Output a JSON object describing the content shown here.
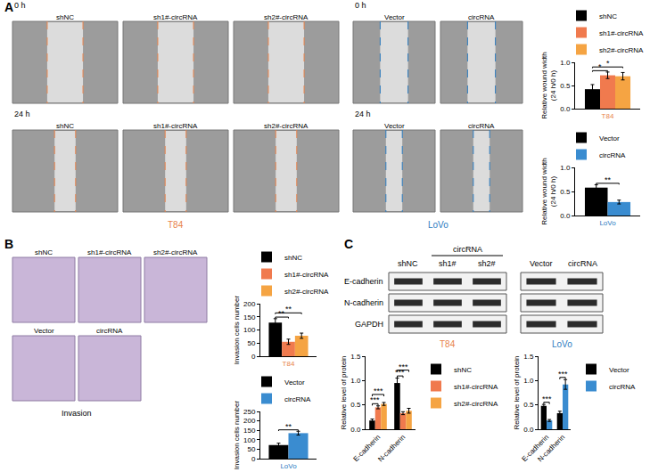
{
  "panels": [
    {
      "label": "A",
      "time_labels": [
        "0 h",
        "24 h"
      ],
      "image_groups": [
        {
          "cell_line": "T84",
          "color": "#E8824A",
          "conditions": [
            "shNC",
            "sh1#-circRNA",
            "sh2#-circRNA"
          ]
        },
        {
          "cell_line": "LoVo",
          "color": "#2B7BBF",
          "conditions": [
            "Vector",
            "circRNA"
          ]
        }
      ]
    },
    {
      "label": "B",
      "caption": "Invasion",
      "image_groups": [
        {
          "conditions": [
            "shNC",
            "sh1#-circRNA",
            "sh2#-circRNA"
          ]
        },
        {
          "conditions": [
            "Vector",
            "circRNA"
          ]
        }
      ]
    },
    {
      "label": "C",
      "blot": {
        "rows": [
          "E-cadherin",
          "N-cadherin",
          "GAPDH"
        ],
        "groups": [
          {
            "cell_line": "T84",
            "color": "#E8824A",
            "header": {
              "text": "circRNA",
              "lanes": [
                1,
                2
              ]
            },
            "lanes": [
              "shNC",
              "sh1#",
              "sh2#"
            ]
          },
          {
            "cell_line": "LoVo",
            "color": "#2B7BBF",
            "lanes": [
              "Vector",
              "circRNA"
            ]
          }
        ]
      }
    }
  ],
  "chart_data": [
    {
      "type": "bar",
      "ylabel": "Relative wound width\n(24 h/0 h)",
      "categories": [
        "T84"
      ],
      "ylim": [
        0,
        1
      ],
      "yticks": [
        {
          "value": 0,
          "label": "0.0"
        },
        {
          "value": 0.5,
          "label": "0.5"
        },
        {
          "value": 1,
          "label": "1.0"
        }
      ],
      "legend": "top",
      "series": [
        {
          "name": "shNC",
          "color": "#000000",
          "values": [
            0.42
          ],
          "errors": [
            0.1
          ]
        },
        {
          "name": "sh1#-circRNA",
          "color": "#F07A4E",
          "values": [
            0.72
          ],
          "errors": [
            0.07
          ]
        },
        {
          "name": "sh2#-circRNA",
          "color": "#F5A443",
          "values": [
            0.7
          ],
          "errors": [
            0.08
          ]
        }
      ],
      "annotations": [
        {
          "text": "*",
          "group": 0,
          "between": [
            0,
            1
          ]
        },
        {
          "text": "*",
          "group": 0,
          "between": [
            0,
            2
          ]
        }
      ]
    },
    {
      "type": "bar",
      "ylabel": "Relative wound width\n(24 h/0 h)",
      "categories": [
        "LoVo"
      ],
      "ylim": [
        0,
        1
      ],
      "yticks": [
        {
          "value": 0,
          "label": "0.0"
        },
        {
          "value": 0.5,
          "label": "0.5"
        },
        {
          "value": 1,
          "label": "1.0"
        }
      ],
      "legend": "top",
      "series": [
        {
          "name": "Vector",
          "color": "#000000",
          "values": [
            0.58
          ],
          "errors": [
            0.06
          ]
        },
        {
          "name": "circRNA",
          "color": "#3A8CD0",
          "values": [
            0.28
          ],
          "errors": [
            0.04
          ]
        }
      ],
      "annotations": [
        {
          "text": "**",
          "group": 0,
          "between": [
            0,
            1
          ]
        }
      ]
    },
    {
      "type": "bar",
      "ylabel": "Invasion cells number",
      "categories": [
        "T84"
      ],
      "ylim": [
        0,
        200
      ],
      "yticks": [
        0,
        50,
        100,
        150,
        200
      ],
      "legend": "top",
      "series": [
        {
          "name": "shNC",
          "color": "#000000",
          "values": [
            128
          ],
          "errors": [
            15
          ]
        },
        {
          "name": "sh1#-circRNA",
          "color": "#F07A4E",
          "values": [
            55
          ],
          "errors": [
            10
          ]
        },
        {
          "name": "sh2#-circRNA",
          "color": "#F5A443",
          "values": [
            78
          ],
          "errors": [
            10
          ]
        }
      ],
      "annotations": [
        {
          "text": "**",
          "group": 0,
          "between": [
            0,
            1
          ]
        },
        {
          "text": "**",
          "group": 0,
          "between": [
            0,
            2
          ]
        }
      ]
    },
    {
      "type": "bar",
      "ylabel": "Invasion cells number",
      "categories": [
        "LoVo"
      ],
      "ylim": [
        0,
        250
      ],
      "yticks": [
        0,
        50,
        100,
        150,
        200,
        250
      ],
      "legend": "top",
      "series": [
        {
          "name": "Vector",
          "color": "#000000",
          "values": [
            72
          ],
          "errors": [
            10
          ]
        },
        {
          "name": "circRNA",
          "color": "#3A8CD0",
          "values": [
            135
          ],
          "errors": [
            10
          ]
        }
      ],
      "annotations": [
        {
          "text": "**",
          "group": 0,
          "between": [
            0,
            1
          ]
        }
      ]
    },
    {
      "type": "bar",
      "ylabel": "Relative level of protein",
      "categories": [
        "E-cadherin",
        "N-cadherin"
      ],
      "ylim": [
        0,
        1.5
      ],
      "yticks": [
        {
          "value": 0,
          "label": "0.0"
        },
        {
          "value": 0.5,
          "label": "0.5"
        },
        {
          "value": 1,
          "label": "1.0"
        },
        {
          "value": 1.5,
          "label": "1.5"
        }
      ],
      "legend": "right",
      "series": [
        {
          "name": "shNC",
          "color": "#000000",
          "values": [
            0.18,
            0.95
          ],
          "errors": [
            0.03,
            0.1
          ]
        },
        {
          "name": "sh1#-circRNA",
          "color": "#F07A4E",
          "values": [
            0.45,
            0.33
          ],
          "errors": [
            0.03,
            0.03
          ]
        },
        {
          "name": "sh2#-circRNA",
          "color": "#F5A443",
          "values": [
            0.52,
            0.38
          ],
          "errors": [
            0.03,
            0.05
          ]
        }
      ],
      "annotations": [
        {
          "text": "***",
          "group": 0,
          "between": [
            0,
            1
          ]
        },
        {
          "text": "***",
          "group": 0,
          "between": [
            0,
            2
          ]
        },
        {
          "text": "***",
          "group": 1,
          "between": [
            0,
            1
          ]
        },
        {
          "text": "***",
          "group": 1,
          "between": [
            0,
            2
          ]
        }
      ]
    },
    {
      "type": "bar",
      "ylabel": "Relative level of protein",
      "categories": [
        "E-cadherin",
        "N-cadherin"
      ],
      "ylim": [
        0,
        1.5
      ],
      "yticks": [
        {
          "value": 0,
          "label": "0.0"
        },
        {
          "value": 0.5,
          "label": "0.5"
        },
        {
          "value": 1,
          "label": "1.0"
        },
        {
          "value": 1.5,
          "label": "1.5"
        }
      ],
      "legend": "right",
      "series": [
        {
          "name": "Vector",
          "color": "#000000",
          "values": [
            0.48,
            0.33
          ],
          "errors": [
            0.03,
            0.04
          ]
        },
        {
          "name": "circRNA",
          "color": "#3A8CD0",
          "values": [
            0.18,
            0.92
          ],
          "errors": [
            0.02,
            0.1
          ]
        }
      ],
      "annotations": [
        {
          "text": "***",
          "group": 0,
          "between": [
            0,
            1
          ]
        },
        {
          "text": "***",
          "group": 1,
          "between": [
            0,
            1
          ]
        }
      ]
    }
  ]
}
